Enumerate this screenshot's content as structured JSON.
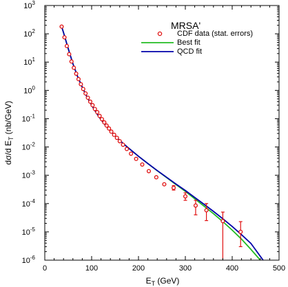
{
  "chart_data": {
    "type": "scatter",
    "title": "MRSA'",
    "xlabel": "E_T (GeV)",
    "ylabel": "dσ/d E_T (nb/GeV)",
    "xlim": [
      0,
      500
    ],
    "ylim": [
      1e-06,
      1000
    ],
    "yscale": "log",
    "x_ticks": [
      0,
      100,
      200,
      300,
      400,
      500
    ],
    "y_ticks": [
      1e-06,
      1e-05,
      0.0001,
      0.001,
      0.01,
      0.1,
      1,
      10,
      100,
      1000
    ],
    "y_tick_labels": [
      {
        "base": "10",
        "exp": "-6"
      },
      {
        "base": "10",
        "exp": "-5"
      },
      {
        "base": "10",
        "exp": "-4"
      },
      {
        "base": "10",
        "exp": "-3"
      },
      {
        "base": "10",
        "exp": "-2"
      },
      {
        "base": "10",
        "exp": "-1"
      },
      {
        "base": "10",
        "exp": "0"
      },
      {
        "base": "10",
        "exp": "1"
      },
      {
        "base": "10",
        "exp": "2"
      },
      {
        "base": "10",
        "exp": "3"
      }
    ],
    "legend": {
      "position": "top-right",
      "entries": [
        "CDF data (stat. errors)",
        "Best fit",
        "QCD fit"
      ]
    },
    "series": [
      {
        "name": "CDF data (stat. errors)",
        "kind": "points",
        "color": "#e01010",
        "points": [
          {
            "x": 36,
            "y": 180
          },
          {
            "x": 42,
            "y": 75
          },
          {
            "x": 47,
            "y": 37
          },
          {
            "x": 52,
            "y": 19
          },
          {
            "x": 57,
            "y": 10.5
          },
          {
            "x": 62,
            "y": 6.3
          },
          {
            "x": 67,
            "y": 3.9
          },
          {
            "x": 72,
            "y": 2.5
          },
          {
            "x": 77,
            "y": 1.65
          },
          {
            "x": 82,
            "y": 1.12
          },
          {
            "x": 87,
            "y": 0.78
          },
          {
            "x": 92,
            "y": 0.55
          },
          {
            "x": 97,
            "y": 0.4
          },
          {
            "x": 102,
            "y": 0.3
          },
          {
            "x": 107,
            "y": 0.22
          },
          {
            "x": 112,
            "y": 0.17
          },
          {
            "x": 117,
            "y": 0.125
          },
          {
            "x": 122,
            "y": 0.096
          },
          {
            "x": 127,
            "y": 0.074
          },
          {
            "x": 132,
            "y": 0.057
          },
          {
            "x": 137,
            "y": 0.045
          },
          {
            "x": 142,
            "y": 0.035
          },
          {
            "x": 148,
            "y": 0.027
          },
          {
            "x": 154,
            "y": 0.021
          },
          {
            "x": 160,
            "y": 0.016
          },
          {
            "x": 167,
            "y": 0.012
          },
          {
            "x": 175,
            "y": 0.0085
          },
          {
            "x": 184,
            "y": 0.0058
          },
          {
            "x": 195,
            "y": 0.0038
          },
          {
            "x": 208,
            "y": 0.0024
          },
          {
            "x": 222,
            "y": 0.0014
          },
          {
            "x": 238,
            "y": 0.00085
          },
          {
            "x": 255,
            "y": 0.00048
          },
          {
            "x": 275,
            "y": 0.00036,
            "ylo": 0.0003,
            "yhi": 0.00043
          },
          {
            "x": 300,
            "y": 0.00018,
            "ylo": 0.00013,
            "yhi": 0.00024
          },
          {
            "x": 322,
            "y": 8.5e-05,
            "ylo": 4e-05,
            "yhi": 0.00013
          },
          {
            "x": 345,
            "y": 5.8e-05,
            "ylo": 2.5e-05,
            "yhi": 0.0001
          },
          {
            "x": 380,
            "y": 2.4e-05,
            "ylo": 1e-06,
            "yhi": 5e-05
          },
          {
            "x": 418,
            "y": 1e-05,
            "ylo": 3e-06,
            "yhi": 2.3e-05
          }
        ]
      },
      {
        "name": "Best fit",
        "kind": "line",
        "color": "#22bb22",
        "x": [
          36,
          40,
          50,
          60,
          70,
          80,
          90,
          100,
          110,
          120,
          130,
          140,
          150,
          160,
          170,
          180,
          200,
          220,
          240,
          260,
          280,
          300,
          320,
          340,
          360,
          380,
          400,
          420,
          440,
          460
        ],
        "y": [
          180,
          110,
          30,
          8.8,
          3.1,
          1.3,
          0.59,
          0.3,
          0.16,
          0.093,
          0.057,
          0.037,
          0.025,
          0.017,
          0.0122,
          0.0088,
          0.0047,
          0.0026,
          0.00145,
          0.00083,
          0.00047,
          0.00027,
          0.000148,
          8.1e-05,
          4.4e-05,
          2.3e-05,
          1.15e-05,
          5.5e-06,
          2.4e-06,
          1e-06
        ]
      },
      {
        "name": "QCD fit",
        "kind": "line",
        "color": "#0000aa",
        "x": [
          36,
          40,
          50,
          60,
          70,
          80,
          90,
          100,
          110,
          120,
          130,
          140,
          150,
          160,
          170,
          180,
          200,
          220,
          240,
          260,
          280,
          300,
          320,
          340,
          360,
          380,
          400,
          420,
          440,
          466
        ],
        "y": [
          180,
          110,
          30,
          8.8,
          3.1,
          1.3,
          0.59,
          0.3,
          0.16,
          0.093,
          0.057,
          0.037,
          0.025,
          0.017,
          0.0122,
          0.0088,
          0.0047,
          0.0026,
          0.00147,
          0.00085,
          0.00049,
          0.00029,
          0.000165,
          9.4e-05,
          5.3e-05,
          2.9e-05,
          1.55e-05,
          7.9e-06,
          3.9e-06,
          1e-06
        ]
      }
    ]
  }
}
